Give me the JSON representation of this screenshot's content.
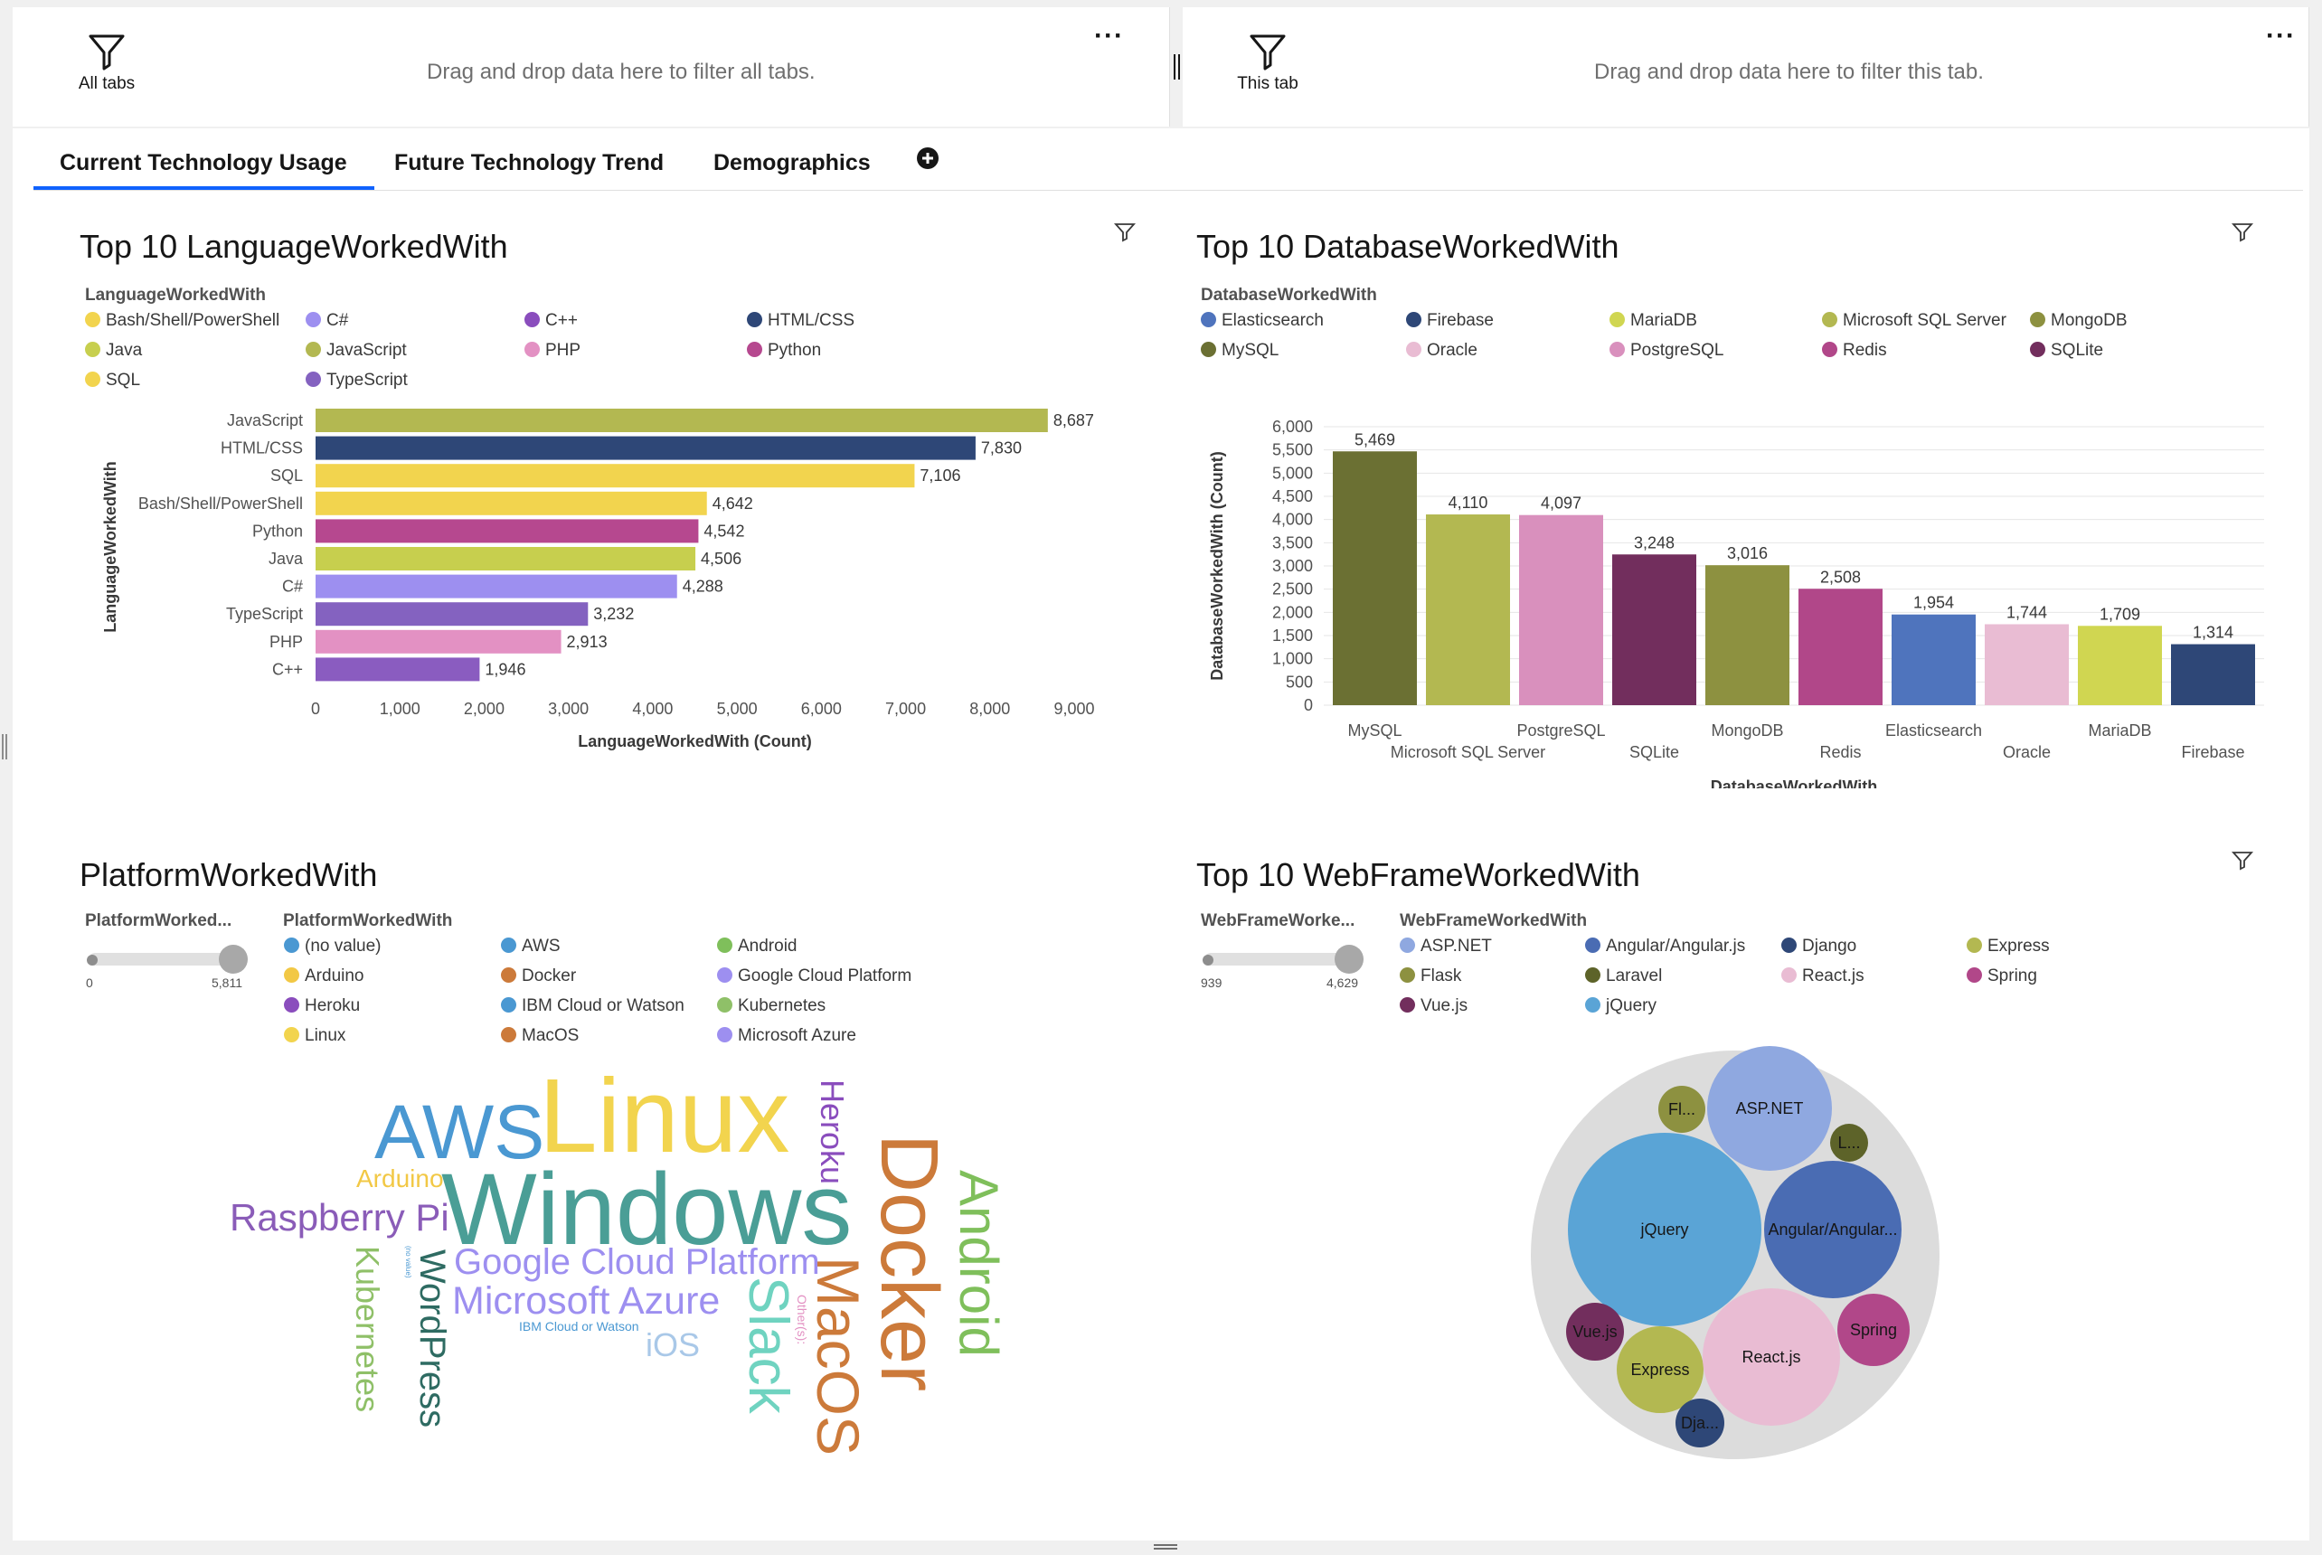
{
  "filters": {
    "all_tabs": {
      "label": "All tabs",
      "placeholder": "Drag and drop data here to filter all tabs."
    },
    "this_tab": {
      "label": "This tab",
      "placeholder": "Drag and drop data here to filter this tab."
    },
    "more": "···"
  },
  "tabs": [
    {
      "label": "Current Technology Usage",
      "active": true
    },
    {
      "label": "Future Technology Trend"
    },
    {
      "label": "Demographics"
    }
  ],
  "language_chart": {
    "title": "Top 10 LanguageWorkedWith",
    "legend_title": "LanguageWorkedWith",
    "legend": [
      {
        "name": "Bash/Shell/PowerShell",
        "color": "#f2d44e"
      },
      {
        "name": "C#",
        "color": "#9d8ff0"
      },
      {
        "name": "C++",
        "color": "#8a4dbd"
      },
      {
        "name": "HTML/CSS",
        "color": "#2e4777"
      },
      {
        "name": "Java",
        "color": "#c7cf4e"
      },
      {
        "name": "JavaScript",
        "color": "#b3b851"
      },
      {
        "name": "PHP",
        "color": "#e391c3"
      },
      {
        "name": "Python",
        "color": "#b6488f"
      },
      {
        "name": "SQL",
        "color": "#f2d44e"
      },
      {
        "name": "TypeScript",
        "color": "#8462c0"
      }
    ]
  },
  "database_chart": {
    "title": "Top 10 DatabaseWorkedWith",
    "legend_title": "DatabaseWorkedWith",
    "legend": [
      {
        "name": "Elasticsearch",
        "color": "#4f74bd"
      },
      {
        "name": "Firebase",
        "color": "#2e4777"
      },
      {
        "name": "MariaDB",
        "color": "#d0d651"
      },
      {
        "name": "Microsoft SQL Server",
        "color": "#b3b851"
      },
      {
        "name": "MongoDB",
        "color": "#8d9140"
      },
      {
        "name": "MySQL",
        "color": "#6b7033"
      },
      {
        "name": "Oracle",
        "color": "#e9bcd3"
      },
      {
        "name": "PostgreSQL",
        "color": "#d990bd"
      },
      {
        "name": "Redis",
        "color": "#b14789"
      },
      {
        "name": "SQLite",
        "color": "#722e5d"
      }
    ]
  },
  "platform_cloud": {
    "title": "PlatformWorkedWith",
    "slider_title": "PlatformWorked...",
    "slider_min": "0",
    "slider_max": "5,811",
    "legend_title": "PlatformWorkedWith",
    "legend": [
      {
        "name": "(no value)",
        "color": "#4a98d2"
      },
      {
        "name": "AWS",
        "color": "#4a98d2"
      },
      {
        "name": "Android",
        "color": "#7fbf5b"
      },
      {
        "name": "Arduino",
        "color": "#f2c845"
      },
      {
        "name": "Docker",
        "color": "#cc7a3a"
      },
      {
        "name": "Google Cloud Platform",
        "color": "#9d8ff0"
      },
      {
        "name": "Heroku",
        "color": "#8a4dbd"
      },
      {
        "name": "IBM Cloud or Watson",
        "color": "#4a98d2"
      },
      {
        "name": "Kubernetes",
        "color": "#8fc068"
      },
      {
        "name": "Linux",
        "color": "#f2d44e"
      },
      {
        "name": "MacOS",
        "color": "#cc7a3a"
      },
      {
        "name": "Microsoft Azure",
        "color": "#9d8ff0"
      }
    ],
    "words": {
      "aws": "AWS",
      "linux": "Linux",
      "heroku": "Heroku",
      "docker": "Docker",
      "android": "Android",
      "arduino": "Arduino",
      "windows": "Windows",
      "raspberry": "Raspberry Pi",
      "gcp": "Google Cloud Platform",
      "azure": "Microsoft Azure",
      "ibm": "IBM Cloud or Watson",
      "ios": "iOS",
      "slack": "Slack",
      "macos": "MacOS",
      "other": "Other(s):",
      "kubernetes": "Kubernetes",
      "wordpress": "WordPress",
      "novalue": "(no value)"
    }
  },
  "webframe_chart": {
    "title": "Top 10 WebFrameWorkedWith",
    "slider_title": "WebFrameWorke...",
    "slider_min": "939",
    "slider_max": "4,629",
    "legend_title": "WebFrameWorkedWith",
    "legend": [
      {
        "name": "ASP.NET",
        "color": "#8fa8e0"
      },
      {
        "name": "Angular/Angular.js",
        "color": "#4a6cb3"
      },
      {
        "name": "Django",
        "color": "#2e4777"
      },
      {
        "name": "Express",
        "color": "#b3b851"
      },
      {
        "name": "Flask",
        "color": "#8d9140"
      },
      {
        "name": "Laravel",
        "color": "#5d6329"
      },
      {
        "name": "React.js",
        "color": "#e9bcd3"
      },
      {
        "name": "Spring",
        "color": "#b14789"
      },
      {
        "name": "Vue.js",
        "color": "#722e5d"
      },
      {
        "name": "jQuery",
        "color": "#5aa4d6"
      }
    ]
  },
  "chart_data": [
    {
      "type": "bar",
      "orientation": "horizontal",
      "title": "Top 10 LanguageWorkedWith",
      "xlabel": "LanguageWorkedWith (Count)",
      "ylabel": "LanguageWorkedWith",
      "xlim": [
        0,
        9000
      ],
      "xticks": [
        "0",
        "1,000",
        "2,000",
        "3,000",
        "4,000",
        "5,000",
        "6,000",
        "7,000",
        "8,000",
        "9,000"
      ],
      "categories": [
        "JavaScript",
        "HTML/CSS",
        "SQL",
        "Bash/Shell/PowerShell",
        "Python",
        "Java",
        "C#",
        "TypeScript",
        "PHP",
        "C++"
      ],
      "values": [
        8687,
        7830,
        7106,
        4642,
        4542,
        4506,
        4288,
        3232,
        2913,
        1946
      ],
      "value_labels": [
        "8,687",
        "7,830",
        "7,106",
        "4,642",
        "4,542",
        "4,506",
        "4,288",
        "3,232",
        "2,913",
        "1,946"
      ],
      "colors": [
        "#b3b851",
        "#2e4777",
        "#f2d44e",
        "#f2d44e",
        "#b6488f",
        "#c7cf4e",
        "#9d8ff0",
        "#8462c0",
        "#e391c3",
        "#8a5cc0"
      ],
      "grid": false
    },
    {
      "type": "bar",
      "orientation": "vertical",
      "title": "Top 10 DatabaseWorkedWith",
      "xlabel": "DatabaseWorkedWith",
      "ylabel": "DatabaseWorkedWith (Count)",
      "ylim": [
        0,
        6000
      ],
      "yticks": [
        "0",
        "500",
        "1,000",
        "1,500",
        "2,000",
        "2,500",
        "3,000",
        "3,500",
        "4,000",
        "4,500",
        "5,000",
        "5,500",
        "6,000"
      ],
      "categories": [
        "MySQL",
        "Microsoft SQL Server",
        "PostgreSQL",
        "SQLite",
        "MongoDB",
        "Redis",
        "Elasticsearch",
        "Oracle",
        "MariaDB",
        "Firebase"
      ],
      "values": [
        5469,
        4110,
        4097,
        3248,
        3016,
        2508,
        1954,
        1744,
        1709,
        1314
      ],
      "value_labels": [
        "5,469",
        "4,110",
        "4,097",
        "3,248",
        "3,016",
        "2,508",
        "1,954",
        "1,744",
        "1,709",
        "1,314"
      ],
      "colors": [
        "#6b7033",
        "#b3b851",
        "#d990bd",
        "#722e5d",
        "#8d9140",
        "#b14789",
        "#4f74bd",
        "#e9bcd3",
        "#d0d651",
        "#2e4777"
      ],
      "grid": true
    },
    {
      "type": "bubble",
      "title": "Top 10 WebFrameWorkedWith",
      "bubbles": [
        {
          "name": "ASP.NET",
          "label": "ASP.NET",
          "color": "#8fa8e0"
        },
        {
          "name": "Flask",
          "label": "Fl...",
          "color": "#8d9140"
        },
        {
          "name": "Laravel",
          "label": "L...",
          "color": "#5d6329"
        },
        {
          "name": "jQuery",
          "label": "jQuery",
          "color": "#5aa4d6"
        },
        {
          "name": "Angular/Angular.js",
          "label": "Angular/Angular...",
          "color": "#4a6cb3"
        },
        {
          "name": "Vue.js",
          "label": "Vue.js",
          "color": "#722e5d"
        },
        {
          "name": "Express",
          "label": "Express",
          "color": "#b3b851"
        },
        {
          "name": "React.js",
          "label": "React.js",
          "color": "#e9bcd3"
        },
        {
          "name": "Spring",
          "label": "Spring",
          "color": "#b14789"
        },
        {
          "name": "Django",
          "label": "Dja...",
          "color": "#2e4777"
        }
      ]
    }
  ]
}
